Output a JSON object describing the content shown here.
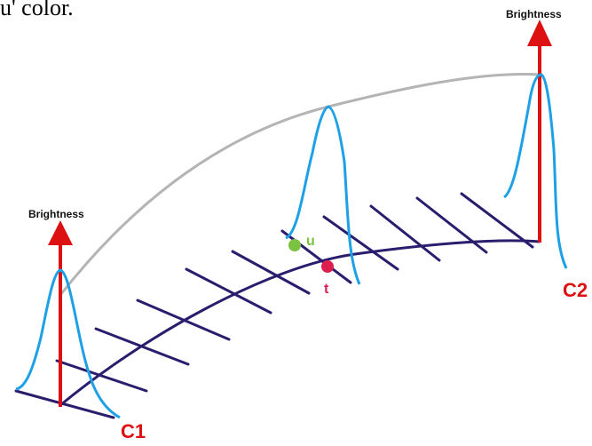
{
  "caption": "u' color.",
  "labels": {
    "brightness_left": "Brightness",
    "brightness_right": "Brightness",
    "c1": "C1",
    "c2": "C2",
    "u": "u",
    "t": "t"
  },
  "colors": {
    "axis_arrow": "#dd1111",
    "gaussian": "#1ea0e6",
    "ground_path": "#2a1d6e",
    "upper_arc": "#b4b4b4",
    "point_u": "#7cc242",
    "point_t": "#dc1f4f",
    "label_c": "#dd1111"
  }
}
